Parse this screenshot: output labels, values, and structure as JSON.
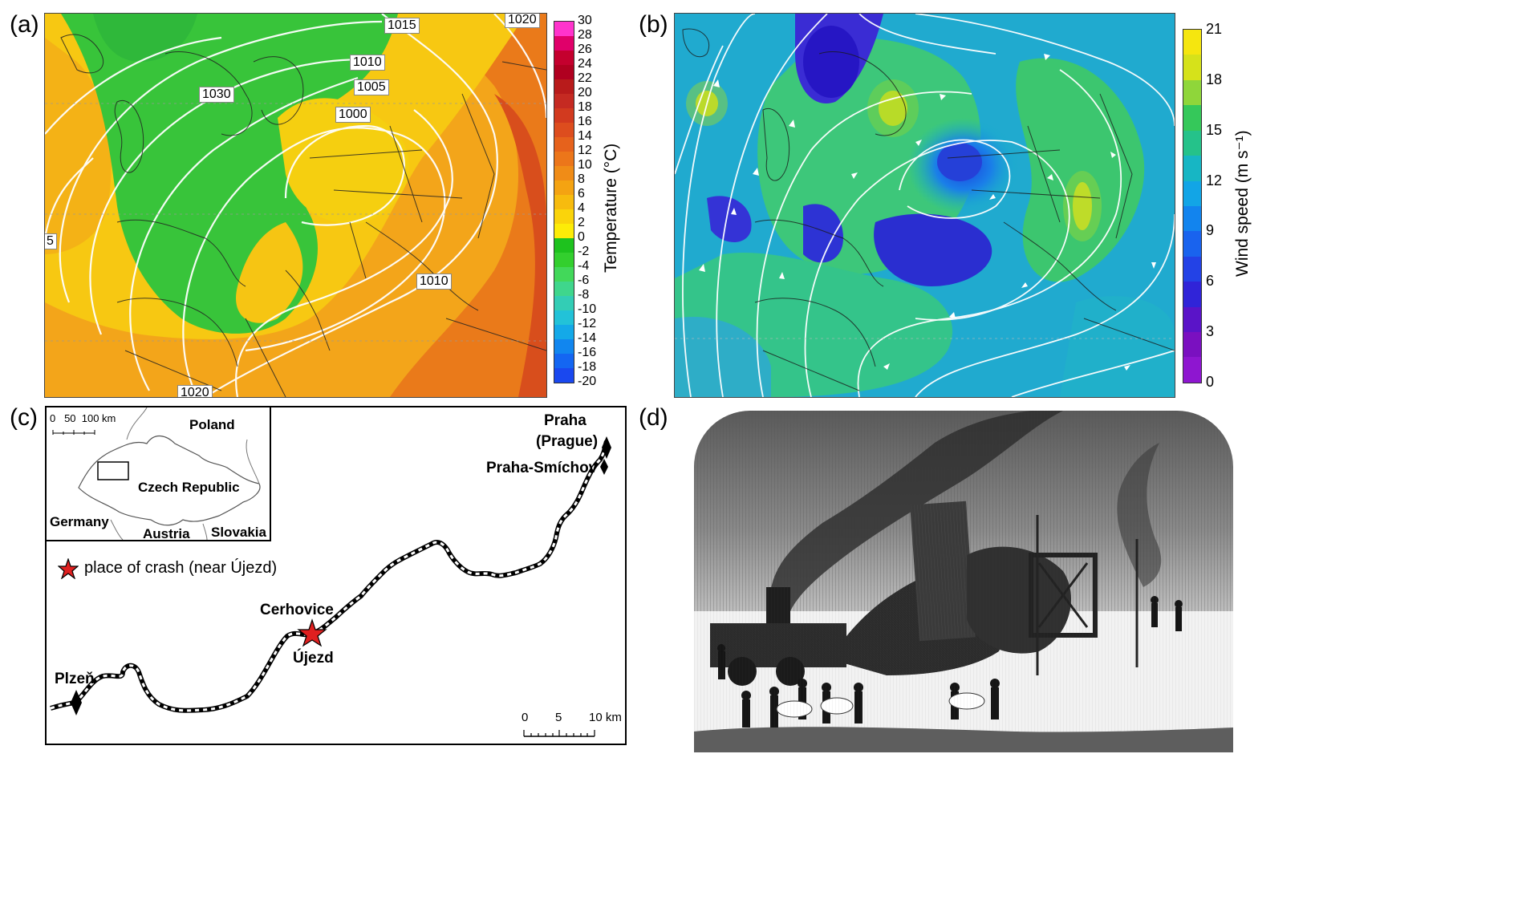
{
  "panels": {
    "a": {
      "label": "(a)"
    },
    "b": {
      "label": "(b)"
    },
    "c": {
      "label": "(c)"
    },
    "d": {
      "label": "(d)"
    }
  },
  "colorbar_a": {
    "title": "Temperature (°C)",
    "ticks": [
      "30",
      "28",
      "26",
      "24",
      "22",
      "20",
      "18",
      "16",
      "14",
      "12",
      "10",
      "8",
      "6",
      "4",
      "2",
      "0",
      "-2",
      "-4",
      "-6",
      "-8",
      "-10",
      "-12",
      "-14",
      "-16",
      "-18",
      "-20"
    ],
    "colors": [
      "#ff33cc",
      "#e0006a",
      "#c4002e",
      "#b00020",
      "#b81b1b",
      "#c52a22",
      "#d23a1f",
      "#dd4d1e",
      "#e6621c",
      "#ec761a",
      "#f08c17",
      "#f4a312",
      "#f7bb0e",
      "#fad40b",
      "#fdec08",
      "#1ec21e",
      "#33cf2e",
      "#42d85a",
      "#3fd68c",
      "#33cdb5",
      "#22c2d8",
      "#14a9e8",
      "#1186ef",
      "#1466f2",
      "#1a48ef"
    ],
    "isobar_labels": [
      "1015",
      "1020",
      "1010",
      "1005",
      "1000",
      "1030",
      "1010",
      "1020",
      "5"
    ]
  },
  "colorbar_b": {
    "title": "Wind speed (m s⁻¹)",
    "ticks": [
      "21",
      "18",
      "15",
      "12",
      "9",
      "6",
      "3",
      "0"
    ],
    "colors": [
      "#f5e60f",
      "#d6e21a",
      "#8fd63a",
      "#35c85a",
      "#25c28a",
      "#17b6c4",
      "#12a5e6",
      "#1284ee",
      "#1963ee",
      "#2342e6",
      "#3024d8",
      "#5a14c8",
      "#7a10c0",
      "#8e16d0"
    ]
  },
  "map_c": {
    "inset": {
      "scale": "0   50  100 km",
      "countries": [
        "Poland",
        "Czech Republic",
        "Germany",
        "Austria",
        "Slovakia"
      ]
    },
    "legend": "place of crash (near Újezd)",
    "places": {
      "praha": "Praha",
      "prague": "(Prague)",
      "smichov": "Praha-Smíchov",
      "cerhovice": "Cerhovice",
      "ujezd": "Újezd",
      "plzen": "Plzeň"
    },
    "scale": {
      "t0": "0",
      "t5": "5",
      "t10": "10 km"
    }
  }
}
